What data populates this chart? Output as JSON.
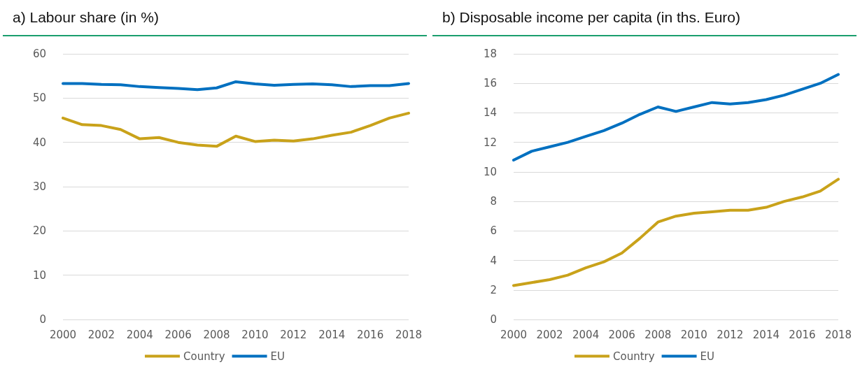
{
  "chart_data": [
    {
      "type": "line",
      "title": "a) Labour share (in %)",
      "categories": [
        "2000",
        null,
        "2002",
        null,
        "2004",
        null,
        "2006",
        null,
        "2008",
        null,
        "2010",
        null,
        "2012",
        null,
        "2014",
        null,
        "2016",
        null,
        "2018"
      ],
      "series": [
        {
          "name": "Country",
          "color": "#c9a21a",
          "values": [
            45.5,
            44.0,
            43.8,
            42.9,
            40.8,
            41.1,
            40.0,
            39.4,
            39.1,
            41.4,
            40.2,
            40.5,
            40.3,
            40.8,
            41.6,
            42.3,
            43.8,
            45.5,
            46.6
          ]
        },
        {
          "name": "EU",
          "color": "#0070c0",
          "values": [
            53.3,
            53.3,
            53.1,
            53.0,
            52.6,
            52.4,
            52.2,
            51.9,
            52.3,
            53.7,
            53.2,
            52.9,
            53.1,
            53.2,
            53.0,
            52.6,
            52.8,
            52.8,
            53.3
          ]
        }
      ],
      "ylim": [
        0,
        60
      ],
      "yticks": [
        0,
        10,
        20,
        30,
        40,
        50,
        60
      ],
      "grid": "y",
      "legend": "bottom",
      "marker": "none",
      "line_style": "solid"
    },
    {
      "type": "line",
      "title": "b) Disposable income per capita (in ths. Euro)",
      "categories": [
        "2000",
        null,
        "2002",
        null,
        "2004",
        null,
        "2006",
        null,
        "2008",
        null,
        "2010",
        null,
        "2012",
        null,
        "2014",
        null,
        "2016",
        null,
        "2018"
      ],
      "series": [
        {
          "name": "Country",
          "color": "#c9a21a",
          "values": [
            2.3,
            2.5,
            2.7,
            3.0,
            3.5,
            3.9,
            4.5,
            5.5,
            6.6,
            7.0,
            7.2,
            7.3,
            7.4,
            7.4,
            7.6,
            8.0,
            8.3,
            8.7,
            9.5
          ]
        },
        {
          "name": "EU",
          "color": "#0070c0",
          "values": [
            10.8,
            11.4,
            11.7,
            12.0,
            12.4,
            12.8,
            13.3,
            13.9,
            14.4,
            14.1,
            14.4,
            14.7,
            14.6,
            14.7,
            14.9,
            15.2,
            15.6,
            16.0,
            16.6
          ]
        }
      ],
      "ylim": [
        0,
        18
      ],
      "yticks": [
        0,
        2,
        4,
        6,
        8,
        10,
        12,
        14,
        16,
        18
      ],
      "grid": "y",
      "legend": "bottom",
      "marker": "none",
      "line_style": "solid"
    }
  ]
}
